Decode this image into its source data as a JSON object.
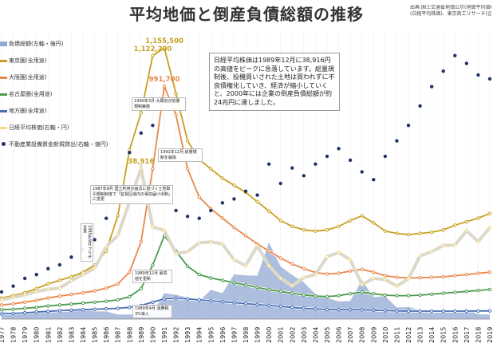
{
  "title": "平均地価と倒産負債総額の推移",
  "source": [
    "出典:国土交通省地価公示(地価平均価格",
    "(日経平均株価)、東京商工リサーチ(企業"
  ],
  "legend": [
    {
      "label": "負債総額(左軸・億円)",
      "color": "#4a6fb5",
      "kind": "area"
    },
    {
      "label": "東京圏(全用途)",
      "color": "#c8a020",
      "kind": "line"
    },
    {
      "label": "大阪圏(全用途)",
      "color": "#e8874a",
      "kind": "line"
    },
    {
      "label": "名古屋圏(全用途)",
      "color": "#4e9a4e",
      "kind": "line"
    },
    {
      "label": "地方圏(全用途)",
      "color": "#4a6fb5",
      "kind": "line"
    },
    {
      "label": "日経平均株価(右軸・円)",
      "color": "#f2dc82",
      "kind": "line"
    },
    {
      "label": "不動産業設備資金新規貸出(右軸・億円)",
      "color": "#1f3566",
      "kind": "dot"
    }
  ],
  "note": "日経平均株価は1989年12月に38,916円の高値をピークに急落しています。総量規制後、投機買いされた土地は買われずに不良債権化していき、経済が縮小していくと、2000年には企業の倒産負債総額が約24兆円に達しました。",
  "annotations": [
    {
      "text": "1985年9月 プラザ合意",
      "vertical": true
    },
    {
      "text": "1987年8月 国土利用計画法に基づく土地取引規制制度で「監視区域内の事前届け出制」に変更",
      "vertical": false
    },
    {
      "text": "1990年3月 大蔵省が総量規制実施",
      "vertical": false
    },
    {
      "text": "1991年12月 総量規制を解除",
      "vertical": false
    },
    {
      "text": "1989年12月 最高値を更新",
      "vertical": false
    },
    {
      "text": "1989年4月 消費税3%導入",
      "vertical": false
    }
  ],
  "chart_data": {
    "type": "line",
    "title": "平均地価と倒産負債総額の推移",
    "x": [
      "1977",
      "1978",
      "1979",
      "1980",
      "1981",
      "1982",
      "1983",
      "1984",
      "1985",
      "1986",
      "1987",
      "1988",
      "1989",
      "1990",
      "1991",
      "1992",
      "1993",
      "1994",
      "1995",
      "1996",
      "1997",
      "1998",
      "1999",
      "2000",
      "2001",
      "2002",
      "2003",
      "2004",
      "2005",
      "2006",
      "2007",
      "2008",
      "2009",
      "2010",
      "2011",
      "2012",
      "2013",
      "2014",
      "2015",
      "2016",
      "2017",
      "2018",
      "2019"
    ],
    "data_labels": [
      {
        "series": "東京圏(全用途)",
        "x": "1990",
        "text": "1,122,200"
      },
      {
        "series": "東京圏(全用途)",
        "x": "1991",
        "text": "1,155,500"
      },
      {
        "series": "大阪圏(全用途)",
        "x": "1991",
        "text": "991,700"
      },
      {
        "series": "日経平均株価(右軸・円)",
        "x": "1989",
        "text": "38,916"
      }
    ],
    "series": [
      {
        "name": "東京圏(全用途)",
        "color": "#c8a020",
        "axis": "left",
        "values": [
          90000,
          100000,
          112000,
          130000,
          150000,
          165000,
          180000,
          200000,
          230000,
          290000,
          440000,
          720000,
          880000,
          1122200,
          1155500,
          960000,
          760000,
          680000,
          640000,
          600000,
          570000,
          540000,
          500000,
          460000,
          420000,
          395000,
          380000,
          375000,
          380000,
          395000,
          420000,
          440000,
          410000,
          375000,
          365000,
          360000,
          365000,
          370000,
          380000,
          400000,
          415000,
          430000,
          450000
        ]
      },
      {
        "name": "大阪圏(全用途)",
        "color": "#e8874a",
        "axis": "left",
        "values": [
          60000,
          65000,
          72000,
          80000,
          90000,
          98000,
          105000,
          112000,
          120000,
          132000,
          150000,
          200000,
          330000,
          640000,
          991700,
          870000,
          640000,
          520000,
          470000,
          430000,
          390000,
          355000,
          320000,
          290000,
          260000,
          235000,
          215000,
          198000,
          192000,
          195000,
          205000,
          212000,
          200000,
          185000,
          178000,
          175000,
          176000,
          178000,
          180000,
          185000,
          190000,
          195000,
          200000
        ]
      },
      {
        "name": "名古屋圏(全用途)",
        "color": "#4e9a4e",
        "axis": "left",
        "values": [
          40000,
          42000,
          46000,
          50000,
          56000,
          60000,
          64000,
          68000,
          72000,
          76000,
          82000,
          95000,
          130000,
          230000,
          355000,
          290000,
          225000,
          190000,
          175000,
          165000,
          155000,
          145000,
          135000,
          125000,
          118000,
          110000,
          103000,
          98000,
          96000,
          100000,
          108000,
          115000,
          108000,
          102000,
          100000,
          100000,
          102000,
          106000,
          110000,
          114000,
          118000,
          122000,
          126000
        ]
      },
      {
        "name": "地方圏(全用途)",
        "color": "#4a6fb5",
        "axis": "left",
        "values": [
          22000,
          24000,
          27000,
          30000,
          33000,
          36000,
          38000,
          40000,
          42000,
          44000,
          46000,
          50000,
          58000,
          72000,
          86000,
          90000,
          86000,
          82000,
          78000,
          74000,
          70000,
          66000,
          62000,
          58000,
          54000,
          50000,
          46000,
          43000,
          41000,
          40000,
          40000,
          40000,
          38000,
          36000,
          35000,
          34000,
          34000,
          34000,
          34000,
          34000,
          34000,
          34500,
          35000
        ]
      },
      {
        "name": "日経平均株価(右軸・円)",
        "color": "#f2dc82",
        "axis": "right",
        "values": [
          5000,
          5600,
          6300,
          7100,
          7700,
          8000,
          9900,
          11500,
          13100,
          18700,
          21600,
          30200,
          38916,
          23800,
          22900,
          16900,
          17400,
          19700,
          19900,
          19400,
          15300,
          13800,
          18900,
          13800,
          10500,
          8600,
          10700,
          11500,
          16100,
          17200,
          15300,
          8900,
          10500,
          10200,
          8500,
          10400,
          16300,
          17400,
          19000,
          19100,
          22800,
          20000,
          23600
        ]
      },
      {
        "name": "不動産業設備資金新規貸出(右軸・億円)",
        "color": "#1f3566",
        "axis": "right",
        "style": "dot",
        "values": [
          7000,
          8500,
          10500,
          11500,
          13000,
          14000,
          16000,
          18000,
          20500,
          26000,
          33000,
          43000,
          48000,
          50000,
          33000,
          28000,
          26500,
          26000,
          28000,
          30000,
          31000,
          33000,
          32000,
          40000,
          35000,
          39000,
          37000,
          40000,
          42000,
          44000,
          41000,
          38000,
          36000,
          42000,
          46000,
          50000,
          55000,
          60000,
          64000,
          68000,
          66000,
          63000,
          62000
        ]
      }
    ],
    "area": {
      "name": "負債総額(左軸・億円)",
      "color": "#4a6fb5",
      "axis": "left",
      "values": [
        24000,
        20000,
        22000,
        27000,
        28000,
        30000,
        26000,
        29000,
        24000,
        24000,
        14000,
        14000,
        13000,
        20000,
        81000,
        76000,
        68000,
        56000,
        92000,
        81000,
        140000,
        137000,
        136000,
        240000,
        165000,
        138000,
        115000,
        78000,
        67000,
        55000,
        57000,
        122000,
        69000,
        72000,
        36000,
        38000,
        28000,
        19000,
        21000,
        20000,
        32000,
        15000,
        14000
      ]
    }
  }
}
